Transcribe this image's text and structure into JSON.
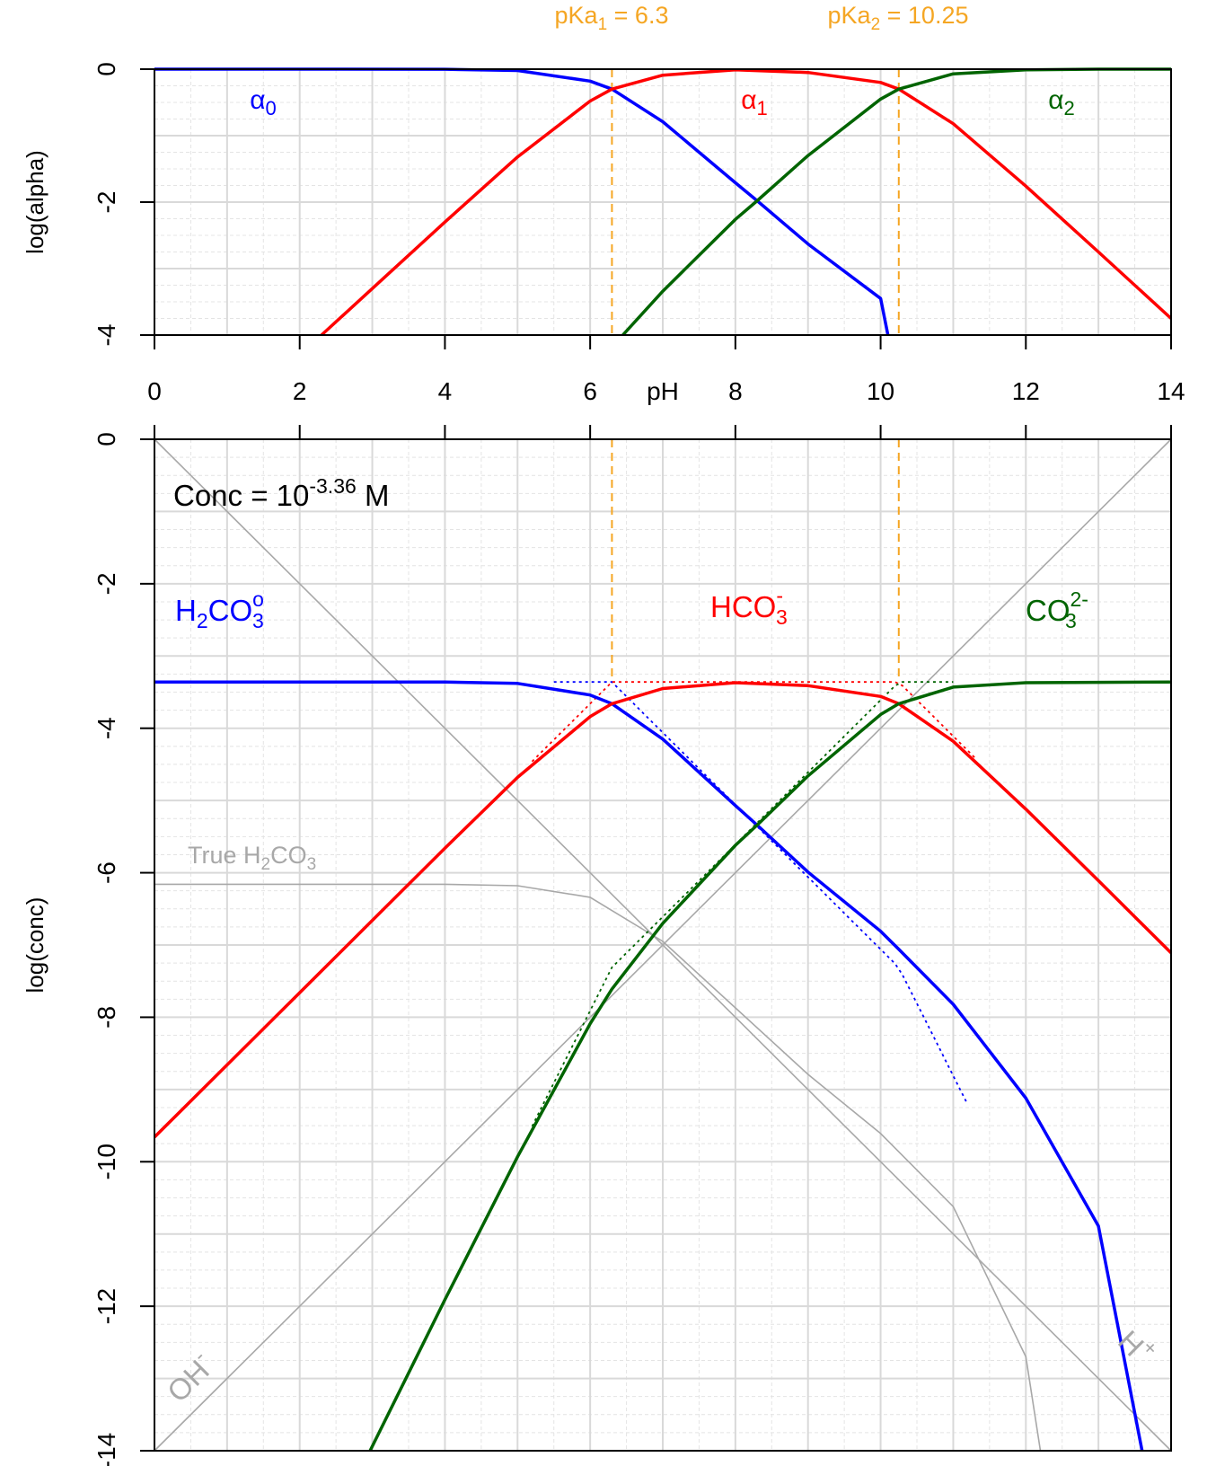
{
  "colors": {
    "alpha0": "#0000ff",
    "alpha1": "#ff0000",
    "alpha2": "#006400",
    "pka": "#f5a623",
    "water": "#a8a8a8",
    "grid_major": "#d9d9d9",
    "grid_minor": "#e4e4e4",
    "text": "#000000"
  },
  "pka_labels": [
    {
      "base": "pKa",
      "sub": "1",
      "rest": " = 6.3"
    },
    {
      "base": "pKa",
      "sub": "2",
      "rest": " = 10.25"
    }
  ],
  "axes": {
    "x_label": "pH",
    "x_ticks": [
      "0",
      "2",
      "4",
      "6",
      "8",
      "10",
      "12",
      "14"
    ],
    "top_y_label": "log(alpha)",
    "top_y_ticks": [
      "0",
      "-2",
      "-4"
    ],
    "bottom_y_label": "log(conc)",
    "bottom_y_ticks": [
      "0",
      "-2",
      "-4",
      "-6",
      "-8",
      "-10",
      "-12",
      "-14"
    ]
  },
  "top_labels": [
    {
      "greek": "α",
      "sub": "0"
    },
    {
      "greek": "α",
      "sub": "1"
    },
    {
      "greek": "α",
      "sub": "2"
    }
  ],
  "conc_label": {
    "text": "Conc = 10",
    "exp": "-3.36",
    "unit": " M"
  },
  "species_labels": {
    "h2co3": {
      "a": "H",
      "sub1": "2",
      "b": "CO",
      "sup": "o",
      "sub2": "3"
    },
    "hco3": {
      "a": "HCO",
      "sup": "-",
      "sub": "3"
    },
    "co3": {
      "a": "CO",
      "sup": "2-",
      "sub": "3"
    },
    "true_h2co3": {
      "a": "True H",
      "sub1": "2",
      "b": "CO",
      "sub2": "3"
    },
    "oh": {
      "a": "OH",
      "sup": "-"
    },
    "h": {
      "a": "H",
      "sup": "+"
    }
  },
  "chart_data": [
    {
      "type": "line",
      "xlabel": "pH",
      "ylabel": "log(alpha)",
      "xlim": [
        0,
        14
      ],
      "ylim": [
        -4,
        0
      ],
      "grid": true,
      "pKa1": 6.3,
      "pKa2": 10.25,
      "series": [
        {
          "name": "α0",
          "x": [
            0,
            2,
            4,
            5,
            6,
            6.3,
            7,
            8,
            8.3,
            9,
            10,
            10.1
          ],
          "y": [
            0,
            0,
            -0.001,
            -0.02,
            -0.18,
            -0.3,
            -0.79,
            -1.71,
            -1.98,
            -2.63,
            -3.45,
            -4.0
          ]
        },
        {
          "name": "α1",
          "x": [
            2.3,
            3,
            4,
            5,
            6,
            6.3,
            7,
            8,
            9,
            10,
            10.25,
            11,
            12,
            13,
            14
          ],
          "y": [
            -4.0,
            -3.3,
            -2.3,
            -1.32,
            -0.48,
            -0.3,
            -0.09,
            -0.01,
            -0.05,
            -0.2,
            -0.3,
            -0.82,
            -1.76,
            -2.75,
            -3.75
          ]
        },
        {
          "name": "α2",
          "x": [
            6.45,
            7,
            8,
            8.3,
            9,
            10,
            10.25,
            11,
            12,
            13,
            14
          ],
          "y": [
            -4.0,
            -3.34,
            -2.26,
            -1.98,
            -1.3,
            -0.45,
            -0.3,
            -0.07,
            -0.01,
            0,
            0
          ]
        }
      ]
    },
    {
      "type": "line",
      "xlabel": "pH",
      "ylabel": "log(conc)",
      "xlim": [
        0,
        14
      ],
      "ylim": [
        -14,
        0
      ],
      "grid": true,
      "total_log_conc": -3.36,
      "series": [
        {
          "name": "H2CO3o",
          "x": [
            0,
            4,
            5,
            6,
            6.3,
            7,
            8,
            8.3,
            9,
            10,
            10.25,
            11,
            12,
            13,
            13.6
          ],
          "y": [
            -3.36,
            -3.36,
            -3.38,
            -3.54,
            -3.66,
            -4.15,
            -5.07,
            -5.34,
            -5.99,
            -6.81,
            -7.06,
            -7.82,
            -9.12,
            -10.89,
            -14.0
          ]
        },
        {
          "name": "HCO3-",
          "x": [
            0,
            2,
            4,
            5,
            6,
            6.3,
            7,
            8,
            9,
            10,
            10.25,
            11,
            12,
            13,
            14
          ],
          "y": [
            -9.66,
            -7.66,
            -5.66,
            -4.68,
            -3.84,
            -3.66,
            -3.45,
            -3.37,
            -3.41,
            -3.56,
            -3.66,
            -4.18,
            -5.12,
            -6.11,
            -7.11
          ]
        },
        {
          "name": "CO32-",
          "x": [
            2.97,
            4,
            5,
            6,
            6.3,
            7,
            8,
            8.3,
            9,
            10,
            10.25,
            11,
            12,
            14
          ],
          "y": [
            -14.0,
            -11.91,
            -9.93,
            -8.09,
            -7.61,
            -6.7,
            -5.62,
            -5.34,
            -4.66,
            -3.81,
            -3.66,
            -3.43,
            -3.37,
            -3.36
          ]
        },
        {
          "name": "H+",
          "x": [
            0,
            14
          ],
          "y": [
            0,
            -14
          ]
        },
        {
          "name": "OH-",
          "x": [
            0,
            14
          ],
          "y": [
            -14,
            0
          ]
        },
        {
          "name": "True H2CO3",
          "x": [
            0,
            4,
            5,
            6,
            7,
            8,
            9,
            10,
            11,
            12,
            12.2
          ],
          "y": [
            -6.16,
            -6.16,
            -6.18,
            -6.34,
            -6.95,
            -7.87,
            -8.79,
            -9.61,
            -10.62,
            -12.7,
            -14.0
          ]
        }
      ]
    }
  ]
}
